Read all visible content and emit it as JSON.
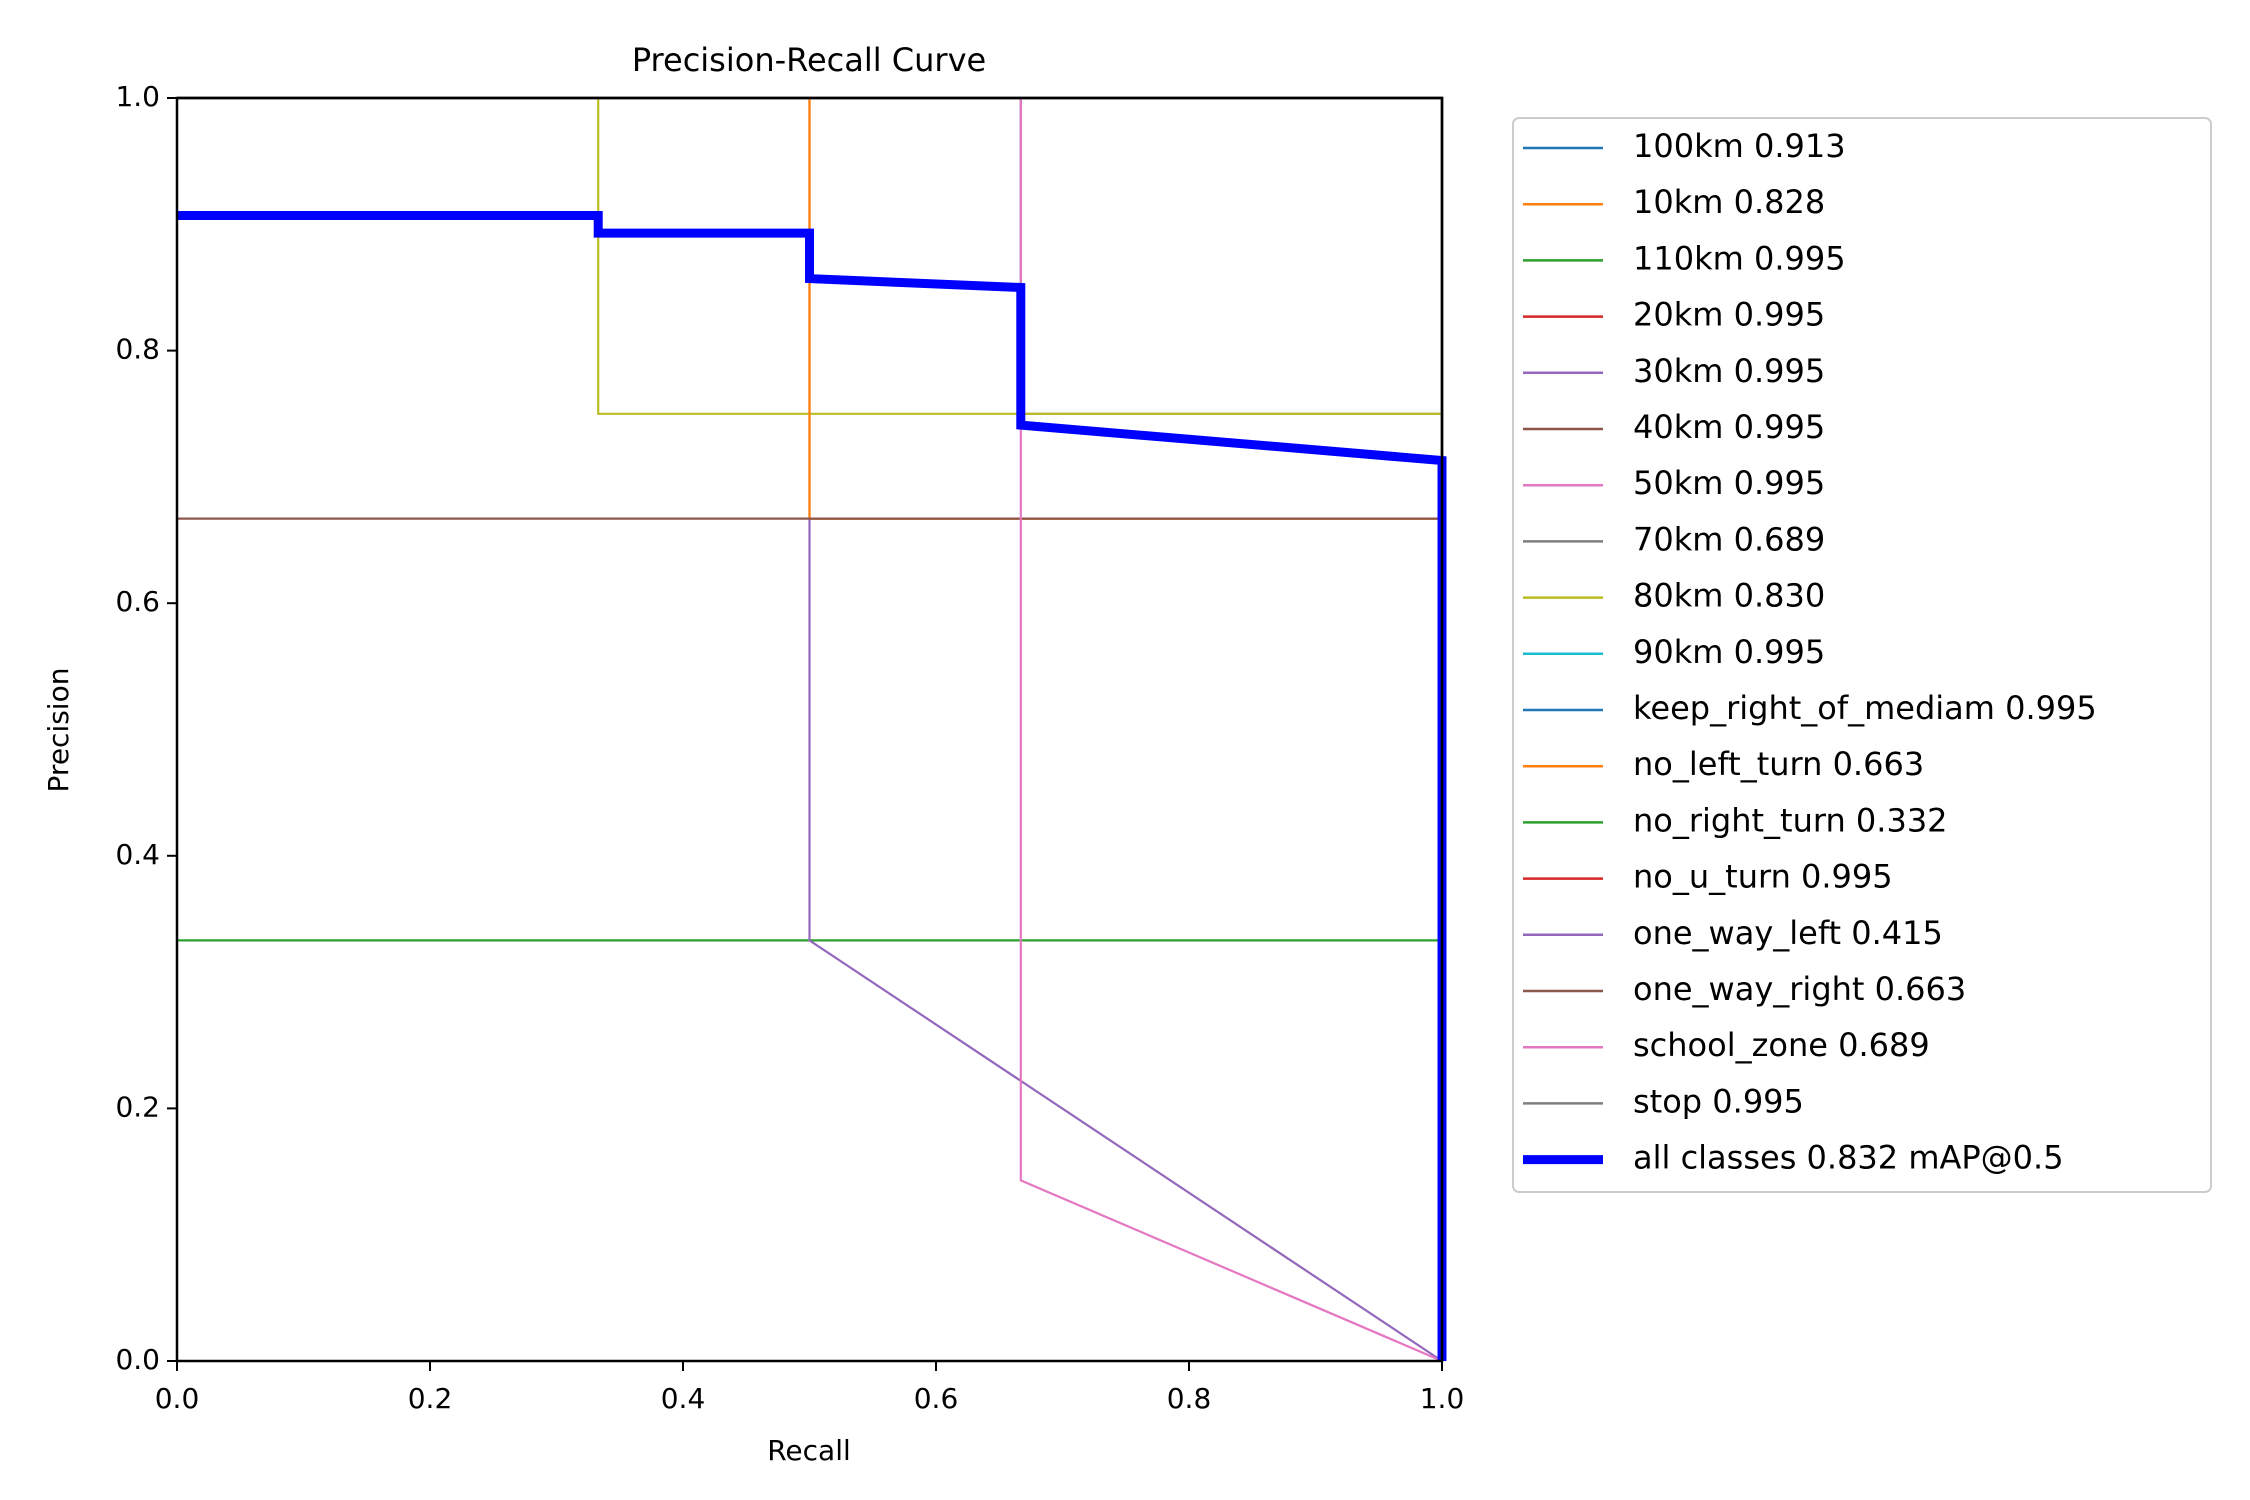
{
  "chart_data": {
    "type": "line",
    "title": "Precision-Recall Curve",
    "xlabel": "Recall",
    "ylabel": "Precision",
    "xlim": [
      0,
      1
    ],
    "ylim": [
      0,
      1
    ],
    "xticks": [
      "0.0",
      "0.2",
      "0.4",
      "0.6",
      "0.8",
      "1.0"
    ],
    "yticks": [
      "0.0",
      "0.2",
      "0.4",
      "0.6",
      "0.8",
      "1.0"
    ],
    "grid": false,
    "legend_position": "outside-right",
    "series": [
      {
        "name": "100km 0.913",
        "color": "#1f77b4",
        "points": [
          [
            0,
            1
          ],
          [
            1,
            1
          ],
          [
            1,
            0
          ]
        ]
      },
      {
        "name": "10km 0.828",
        "color": "#ff7f0e",
        "points": [
          [
            0.5,
            1
          ],
          [
            0.5,
            0.667
          ],
          [
            1,
            0.667
          ],
          [
            1,
            0
          ]
        ]
      },
      {
        "name": "110km 0.995",
        "color": "#2ca02c",
        "points": [
          [
            0,
            1
          ],
          [
            1,
            1
          ],
          [
            1,
            0
          ]
        ]
      },
      {
        "name": "20km 0.995",
        "color": "#d62728",
        "points": [
          [
            0,
            1
          ],
          [
            1,
            1
          ],
          [
            1,
            0
          ]
        ]
      },
      {
        "name": "30km 0.995",
        "color": "#9467bd",
        "points": [
          [
            0,
            1
          ],
          [
            1,
            1
          ],
          [
            1,
            0
          ]
        ]
      },
      {
        "name": "40km 0.995",
        "color": "#8c564b",
        "points": [
          [
            0,
            1
          ],
          [
            1,
            1
          ],
          [
            1,
            0
          ]
        ]
      },
      {
        "name": "50km 0.995",
        "color": "#e377c2",
        "points": [
          [
            0,
            1
          ],
          [
            1,
            1
          ],
          [
            1,
            0
          ]
        ]
      },
      {
        "name": "70km 0.689",
        "color": "#7f7f7f",
        "points": [
          [
            0.667,
            1
          ],
          [
            0.667,
            0.75
          ],
          [
            1,
            0.75
          ],
          [
            1,
            0
          ]
        ]
      },
      {
        "name": "80km 0.830",
        "color": "#bcbd22",
        "points": [
          [
            0.333,
            1
          ],
          [
            0.333,
            0.75
          ],
          [
            1,
            0.75
          ],
          [
            1,
            0
          ]
        ]
      },
      {
        "name": "90km 0.995",
        "color": "#17becf",
        "points": [
          [
            0,
            1
          ],
          [
            1,
            1
          ],
          [
            1,
            0
          ]
        ]
      },
      {
        "name": "keep_right_of_mediam 0.995",
        "color": "#1f77b4",
        "points": [
          [
            0,
            1
          ],
          [
            1,
            1
          ],
          [
            1,
            0
          ]
        ]
      },
      {
        "name": "no_left_turn 0.663",
        "color": "#ff7f0e",
        "points": [
          [
            0.5,
            1
          ],
          [
            0.5,
            0.667
          ],
          [
            1,
            0.667
          ],
          [
            1,
            0
          ]
        ]
      },
      {
        "name": "no_right_turn 0.332",
        "color": "#2ca02c",
        "points": [
          [
            0,
            0.333
          ],
          [
            1,
            0.333
          ],
          [
            1,
            0
          ]
        ]
      },
      {
        "name": "no_u_turn 0.995",
        "color": "#d62728",
        "points": [
          [
            0,
            1
          ],
          [
            1,
            1
          ],
          [
            1,
            0
          ]
        ]
      },
      {
        "name": "one_way_left 0.415",
        "color": "#9467bd",
        "points": [
          [
            0.5,
            0.667
          ],
          [
            0.5,
            0.333
          ],
          [
            1,
            0
          ]
        ]
      },
      {
        "name": "one_way_right 0.663",
        "color": "#8c564b",
        "points": [
          [
            0,
            0.667
          ],
          [
            1,
            0.667
          ],
          [
            1,
            0
          ]
        ]
      },
      {
        "name": "school_zone 0.689",
        "color": "#e377c2",
        "points": [
          [
            0.667,
            1
          ],
          [
            0.667,
            0.143
          ],
          [
            1,
            0
          ]
        ]
      },
      {
        "name": "stop 0.995",
        "color": "#7f7f7f",
        "points": [
          [
            0,
            1
          ],
          [
            1,
            1
          ],
          [
            1,
            0
          ]
        ]
      },
      {
        "name": "all classes 0.832 mAP@0.5",
        "color": "#0000ff",
        "thick": true,
        "points": [
          [
            0,
            0.907
          ],
          [
            0.333,
            0.907
          ],
          [
            0.333,
            0.893
          ],
          [
            0.5,
            0.893
          ],
          [
            0.5,
            0.857
          ],
          [
            0.667,
            0.85
          ],
          [
            0.667,
            0.741
          ],
          [
            1,
            0.713
          ],
          [
            1,
            0
          ]
        ]
      }
    ]
  }
}
